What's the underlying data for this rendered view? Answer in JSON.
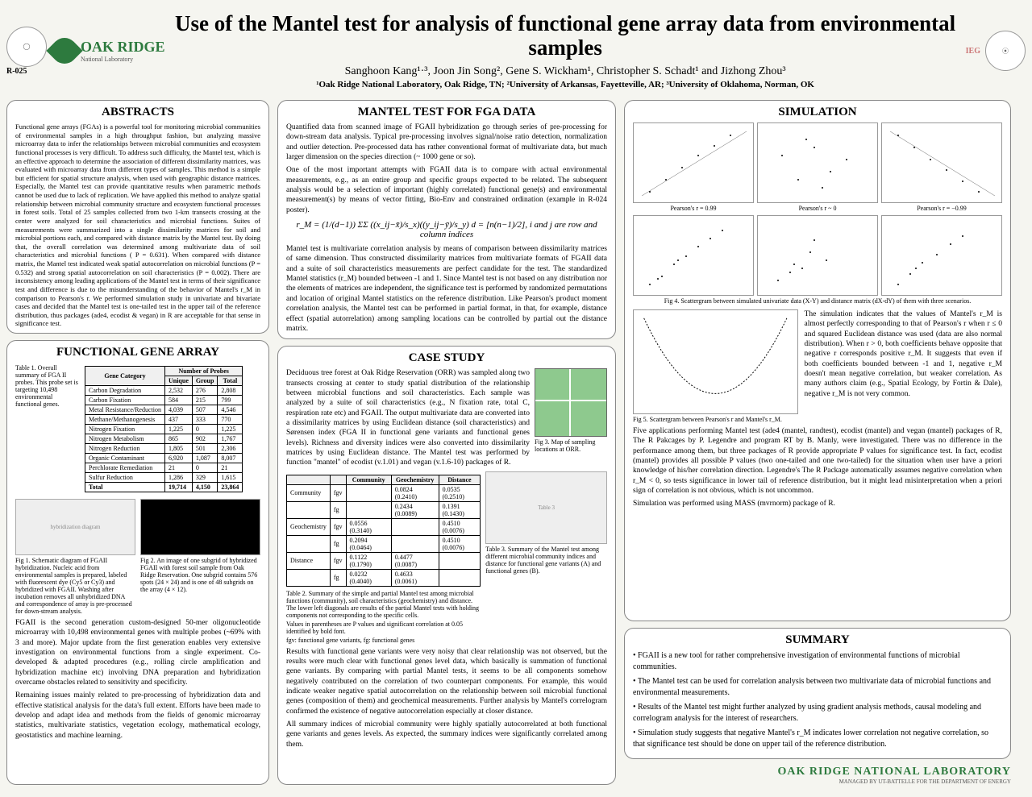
{
  "header": {
    "r_label": "R-025",
    "oakridge": "OAK RIDGE",
    "oakridge_sub": "National Laboratory",
    "title": "Use of the Mantel test for analysis of functional gene array data from environmental samples",
    "authors": "Sanghoon Kang¹·³, Joon Jin Song², Gene S. Wickham¹, Christopher S. Schadt¹ and Jizhong Zhou³",
    "affiliations": "¹Oak Ridge National Laboratory, Oak Ridge, TN; ²University of Arkansas, Fayetteville, AR; ³University of Oklahoma, Norman, OK",
    "ieg": "IEG"
  },
  "abstracts": {
    "title": "ABSTRACTS",
    "text": "Functional gene arrays (FGAs) is a powerful tool for monitoring microbial communities of environmental samples in a high throughput fashion, but analyzing massive microarray data to infer the relationships between microbial communities and ecosystem functional processes is very difficult. To address such difficulty, the Mantel test, which is an effective approach to determine the association of different dissimilarity matrices, was evaluated with microarray data from different types of samples. This method is a simple but efficient for spatial structure analysis, when used with geographic distance matrices. Especially, the Mantel test can provide quantitative results when parametric methods cannot be used due to lack of replication. We have applied this method to analyze spatial relationship between microbial community structure and ecosystem functional processes in forest soils. Total of 25 samples collected from two 1-km transects crossing at the center were analyzed for soil characteristics and microbial functions. Suites of measurements were summarized into a single dissimilarity matrices for soil and microbial portions each, and compared with distance matrix by the Mantel test. By doing that, the overall correlation was determined among multivariate data of soil characteristics and microbial functions ( P = 0.631). When compared with distance matrix, the Mantel test indicated weak spatial autocorrelation on microbial functions (P = 0.532) and strong spatial autocorrelation on soil characteristics (P = 0.002). There are inconsistency among leading applications of the Mantel test in terms of their significance test and difference is due to the misunderstanding of the behavior of Mantel's r_M in comparison to Pearson's r. We performed simulation study in univariate and bivariate cases and decided that the Mantel test is one-tailed test in the upper tail of the reference distribution, thus packages (ade4, ecodist & vegan) in R are acceptable for that sense in significance test."
  },
  "fga": {
    "title": "FUNCTIONAL GENE ARRAY",
    "table_caption": "Table 1. Overall summary of FGA II probes. This probe set is targeting 10,498 environmental functional genes.",
    "table": {
      "headers": [
        "Gene Category",
        "Unique",
        "Group",
        "Total"
      ],
      "rows": [
        [
          "Carbon Degradation",
          "2,532",
          "276",
          "2,808"
        ],
        [
          "Carbon Fixation",
          "584",
          "215",
          "799"
        ],
        [
          "Metal Resistance/Reduction",
          "4,039",
          "507",
          "4,546"
        ],
        [
          "Methane/Methanogenesis",
          "437",
          "333",
          "770"
        ],
        [
          "Nitrogen Fixation",
          "1,225",
          "0",
          "1,225"
        ],
        [
          "Nitrogen Metabolism",
          "865",
          "902",
          "1,767"
        ],
        [
          "Nitrogen Reduction",
          "1,805",
          "501",
          "2,306"
        ],
        [
          "Organic Contaminant",
          "6,920",
          "1,087",
          "8,007"
        ],
        [
          "Perchlorate Remediation",
          "21",
          "0",
          "21"
        ],
        [
          "Sulfur Reduction",
          "1,286",
          "329",
          "1,615"
        ],
        [
          "Total",
          "19,714",
          "4,150",
          "23,864"
        ]
      ],
      "subhead": "Number of Probes"
    },
    "fig1_caption": "Fig 1. Schematic diagram of FGAII hybridization. Nucleic acid from environmental samples is prepared, labeled with fluorescent dye (Cy5 or Cy3) and hybridized with FGAII. Washing after incubation removes all unhybridized DNA and correspondence of array is pre-processed for down-stream analysis.",
    "fig2_caption": "Fig 2. An image of one subgrid of hybridized FGAII with forest soil sample from Oak Ridge Reservation. One subgrid contains 576 spots (24 × 24) and is one of 48 subgrids on the array (4 × 12).",
    "fga_p1": "FGAII is the second generation custom-designed 50-mer oligonucleotide microarray with 10,498 environmental genes with multiple probes (~69% with 3 and more). Major update from the first generation enables very extensive investigation on environmental functions from a single experiment. Co-developed & adapted procedures (e.g., rolling circle amplification and hybridization machine etc) involving DNA preparation and hybridization overcame obstacles related to sensitivity and specificity.",
    "fga_p2": "Remaining issues mainly related to pre-processing of hybridization data and effective statistical analysis for the data's full extent. Efforts have been made to develop and adapt idea and methods from the fields of genomic microarray statistics, multivariate statistics, vegetation ecology, mathematical ecology, geostatistics and machine learning."
  },
  "mantel": {
    "title": "MANTEL TEST FOR FGA DATA",
    "p1": "Quantified data from scanned image of FGAII hybridization go through series of pre-processing for down-stream data analysis. Typical pre-processing involves signal/noise ratio detection, normalization and outlier detection. Pre-processed data has rather conventional format of multivariate data, but much larger dimension on the species direction (~ 1000 gene or so).",
    "p2": "One of the most important attempts with FGAII data is to compare with actual environmental measurements, e.g., as an entire group and specific groups expected to be related. The subsequent analysis would be a selection of important (highly correlated) functional gene(s) and environmental measurement(s) by means of vector fitting, Bio-Env and constrained ordination (example in R-024 poster).",
    "formula": "r_M = (1/(d−1)) ΣΣ ((x_ij−x̄)/s_x)((y_ij−ȳ)/s_y)    d = [n(n−1)/2], i and j are row and column indices",
    "p3": "Mantel test is multivariate correlation analysis by means of comparison between dissimilarity matrices of same dimension. Thus constructed dissimilarity matrices from multivariate formats of FGAII data and a suite of soil characteristics measurements are perfect candidate for the test. The standardized Mantel statistics (r_M) bounded between -1 and 1. Since Mantel test is not based on any distribution nor the elements of matrices are independent, the significance test is performed by randomized permutations and location of original Mantel statistics on the reference distribution. Like Pearson's product moment correlation analysis, the Mantel test can be performed in partial format, in that, for example, distance effect (spatial autorrelation) among sampling locations can be controlled by partial out the distance matrix."
  },
  "casestudy": {
    "title": "CASE STUDY",
    "p1": "Deciduous tree forest at Oak Ridge Reservation (ORR) was sampled along two transects crossing at center to study spatial distribution of the relationship between microbial functions and soil characteristics. Each sample was analyzed by a suite of soil characteristics (e.g., N fixation rate, total C, respiration rate etc) and FGAII. The output multivariate data are converted into a dissimilarity matrices by using Euclidean distance (soil characteristics) and Sørensen index (FGA II in functional gene variants and functional genes levels). Richness and diversity indices were also converted into dissimilarity matrices by using Euclidean distance. The Mantel test was performed by function \"mantel\" of ecodist (v.1.01) and vegan (v.1.6-10) packages of R.",
    "fig3_caption": "Fig 3. Map of sampling locations at ORR.",
    "table2_caption": "Table 2. Summary of the simple and partial Mantel test among microbial functions (community), soil characteristics (geochemistry) and distance. The lower left diagonals are results of the partial Mantel tests with holding components not corresponding to the specific cells.",
    "table2_note": "Values in parentheses are P values and significant correlation at 0.05 identified by bold font.",
    "table2_key": "fgv: functional gene variants, fg: functional genes",
    "table2": {
      "headers": [
        "",
        "",
        "Community",
        "Geochemistry",
        "Distance"
      ],
      "rows": [
        [
          "Community",
          "fgv",
          "",
          "0.0824 (0.2410)",
          "0.0535 (0.2510)"
        ],
        [
          "",
          "fg",
          "",
          "0.2434 (0.0089)",
          "0.1391 (0.1430)"
        ],
        [
          "Geochemistry",
          "fgv",
          "0.0556 (0.3140)",
          "",
          "0.4510 (0.0076)"
        ],
        [
          "",
          "fg",
          "0.2094 (0.0464)",
          "",
          "0.4510 (0.0076)"
        ],
        [
          "Distance",
          "fgv",
          "0.1122 (0.1790)",
          "0.4477 (0.0087)",
          ""
        ],
        [
          "",
          "fg",
          "0.0232 (0.4040)",
          "0.4633 (0.0061)",
          ""
        ]
      ]
    },
    "table3_caption": "Table 3. Summary of the Mantel test among different microbial community indices and distance for functional gene variants (A) and functional genes (B).",
    "p2": "Results with functional gene variants were very noisy that clear relationship was not observed, but the results were much clear with functional genes level data, which basically is summation of functional gene variants. By comparing with partial Mantel tests, it seems to be all components somehow negatively contributed on the correlation of two counterpart components. For example, this would indicate weaker negative spatial autocorrelation on the relationship between soil microbial functional genes (composition of them) and geochemical measurements. Further analysis by Mantel's correlogram confirmed the existence of negative autocorrelation especially at closer distance.",
    "p3": "All summary indices of microbial community were highly spatially autocorrelated at both functional gene variants and genes levels. As expected, the summary indices were significantly correlated among them."
  },
  "simulation": {
    "title": "SIMULATION",
    "scatter_labels": [
      "Pearson's r = 0.99",
      "Pearson's r ~ 0",
      "Pearson's r = −0.99"
    ],
    "fig4_caption": "Fig 4. Scattergram between simulated univariate data (X-Y) and distance matrix (dX-dY) of them with three scenarios.",
    "fig5_caption": "Fig 5. Scattergram between Pearson's r and Mantel's r_M.",
    "p1": "The simulation indicates that the values of Mantel's r_M is almost perfectly corresponding to that of Pearson's r when r ≤ 0 and squared Euclidean distance was used (data are also normal distribution). When r > 0, both coefficients behave opposite that negative r corresponds positive r_M. It suggests that even if both coefficients bounded between -1 and 1, negative r_M doesn't mean negative correlation, but weaker correlation. As many authors claim (e.g., Spatial Ecology, by Fortin & Dale), negative r_M is not very common.",
    "p2": "Five applications performing Mantel test (ade4 (mantel, randtest), ecodist (mantel) and vegan (mantel) packages of R, The R Pakcages by P. Legendre and program RT by B. Manly, were investigated. There was no difference in the performance among them, but three packages of R provide appropriate P values for significance test. In fact, ecodist (mantel) provides all possible P values (two one-tailed and one two-tailed) for the situation when user have a priori knowledge of his/her correlation direction. Legendre's The R Package automatically assumes negative correlation when r_M < 0, so tests significance in lower tail of reference distribution, but it might lead misinterpretation when a priori sign of correlation is not obvious, which is not uncommon.",
    "p3": "Simulation was performed using MASS (mvrnorm) package of R."
  },
  "summary": {
    "title": "SUMMARY",
    "bullets": [
      "• FGAII is a new tool for rather comprehensive investigation of environmental functions of microbial communities.",
      "• The Mantel test can be used for correlation analysis between two multivariate data of microbial functions and environmental measurements.",
      "• Results of the Mantel test might further analyzed by using gradient analysis methods, causal modeling and correlogram analysis for the interest of researchers.",
      "• Simulation study suggests that negative Mantel's r_M indicates lower correlation not negative correlation, so that significance test should be done on upper tail of the reference distribution."
    ]
  },
  "footer": {
    "logo": "OAK RIDGE NATIONAL LABORATORY",
    "sub": "MANAGED BY UT-BATTELLE FOR THE DEPARTMENT OF ENERGY"
  },
  "colors": {
    "border": "#888888",
    "oakridge_green": "#2d7a3e",
    "background": "#f5f5f0"
  }
}
